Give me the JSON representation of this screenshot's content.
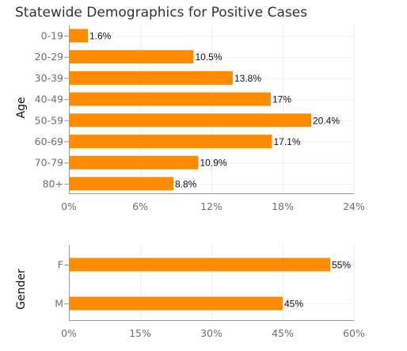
{
  "page": {
    "title": "Statewide Demographics for Positive Cases"
  },
  "chart_data": [
    {
      "type": "bar",
      "orientation": "horizontal",
      "ylabel": "Age",
      "categories": [
        "0-19",
        "20-29",
        "30-39",
        "40-49",
        "50-59",
        "60-69",
        "70-79",
        "80+"
      ],
      "values": [
        1.6,
        10.5,
        13.8,
        17,
        20.4,
        17.1,
        10.9,
        8.8
      ],
      "value_labels": [
        "1.6%",
        "10.5%",
        "13.8%",
        "17%",
        "20.4%",
        "17.1%",
        "10.9%",
        "8.8%"
      ],
      "xlim": [
        0,
        24
      ],
      "xticks": [
        0,
        6,
        12,
        18,
        24
      ],
      "xtick_labels": [
        "0%",
        "6%",
        "12%",
        "18%",
        "24%"
      ],
      "grid": true,
      "bar_color": "#ff8c00"
    },
    {
      "type": "bar",
      "orientation": "horizontal",
      "ylabel": "Gender",
      "categories": [
        "F",
        "M"
      ],
      "values": [
        55,
        45
      ],
      "value_labels": [
        "55%",
        "45%"
      ],
      "xlim": [
        0,
        60
      ],
      "xticks": [
        0,
        15,
        30,
        45,
        60
      ],
      "xtick_labels": [
        "0%",
        "15%",
        "30%",
        "45%",
        "60%"
      ],
      "grid": true,
      "bar_color": "#ff8c00"
    }
  ]
}
